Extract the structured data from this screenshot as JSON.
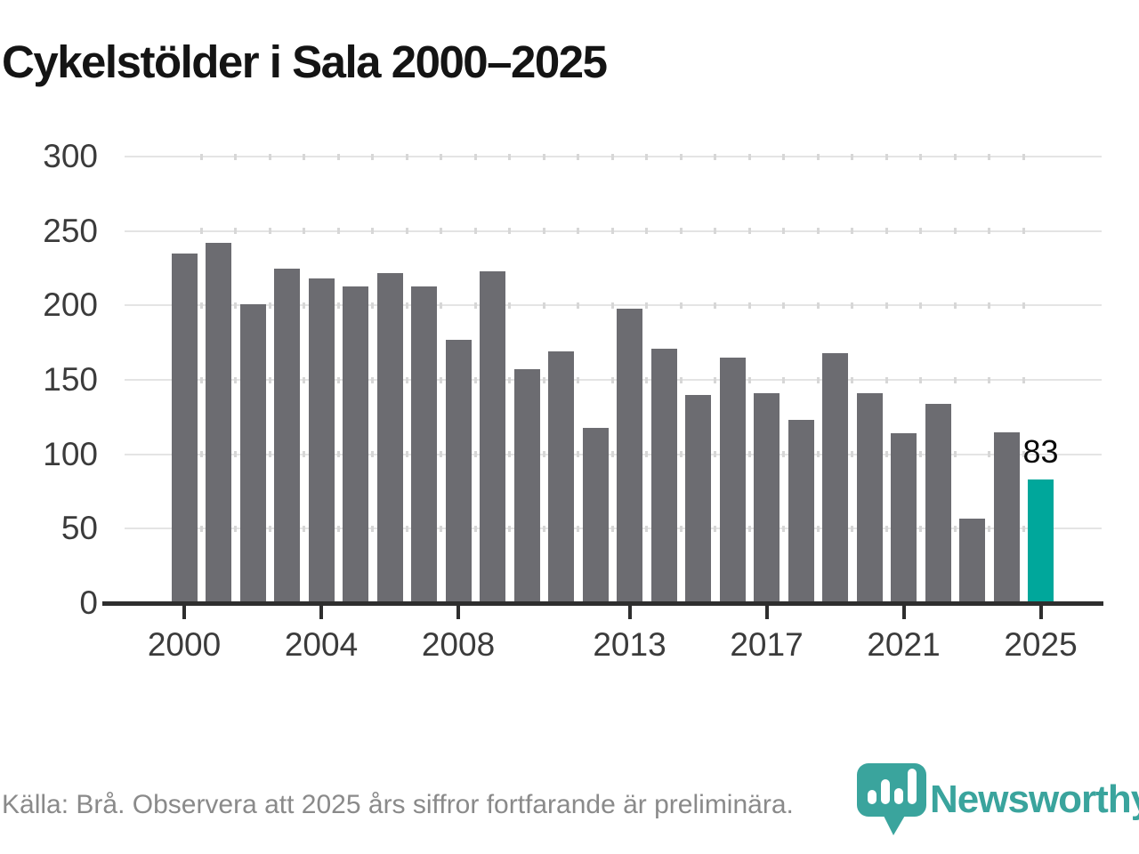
{
  "title": "Cykelstölder i Sala 2000–2025",
  "chart_data": {
    "type": "bar",
    "title": "Cykelstölder i Sala 2000–2025",
    "categories": [
      2000,
      2001,
      2002,
      2003,
      2004,
      2005,
      2006,
      2007,
      2008,
      2009,
      2010,
      2011,
      2012,
      2013,
      2014,
      2015,
      2016,
      2017,
      2018,
      2019,
      2020,
      2021,
      2022,
      2023,
      2024,
      2025
    ],
    "values": [
      235,
      242,
      201,
      225,
      218,
      213,
      222,
      213,
      177,
      223,
      157,
      169,
      118,
      198,
      171,
      140,
      165,
      141,
      123,
      168,
      141,
      114,
      134,
      57,
      115,
      83
    ],
    "xlabel": "",
    "ylabel": "",
    "ylim": [
      0,
      300
    ],
    "y_ticks": [
      0,
      50,
      100,
      150,
      200,
      250,
      300
    ],
    "x_tick_years": [
      2000,
      2004,
      2008,
      2013,
      2017,
      2021,
      2025
    ],
    "grid": true,
    "legend_position": "none",
    "bar_color": "#6c6c71",
    "highlight": {
      "year": 2025,
      "value": 83,
      "label": "83",
      "color": "#00a79b"
    }
  },
  "footer": {
    "source_text": "Källa: Brå. Observera att 2025 års siffror fortfarande är preliminära."
  },
  "branding": {
    "wordmark": "Newsworthy",
    "icon": "newsworthy-bubble-barchart-icon",
    "color": "#3aa49d"
  }
}
